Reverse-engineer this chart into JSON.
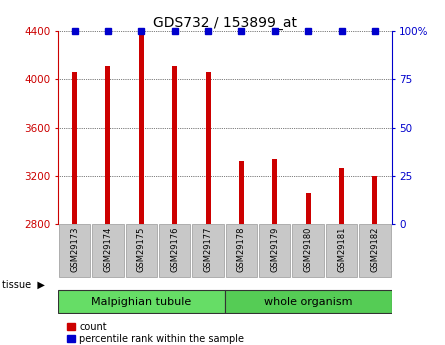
{
  "title": "GDS732 / 153899_at",
  "samples": [
    "GSM29173",
    "GSM29174",
    "GSM29175",
    "GSM29176",
    "GSM29177",
    "GSM29178",
    "GSM29179",
    "GSM29180",
    "GSM29181",
    "GSM29182"
  ],
  "counts": [
    4060,
    4110,
    4390,
    4110,
    4060,
    3320,
    3340,
    3060,
    3270,
    3200
  ],
  "percentiles": [
    100,
    100,
    100,
    100,
    100,
    100,
    100,
    100,
    100,
    100
  ],
  "tissue_groups": [
    {
      "label": "Malpighian tubule",
      "start": 0,
      "end": 5,
      "color": "#66DD66"
    },
    {
      "label": "whole organism",
      "start": 5,
      "end": 10,
      "color": "#55CC55"
    }
  ],
  "ylim_left": [
    2800,
    4400
  ],
  "ylim_right": [
    0,
    100
  ],
  "yticks_left": [
    2800,
    3200,
    3600,
    4000,
    4400
  ],
  "yticks_right": [
    0,
    25,
    50,
    75,
    100
  ],
  "yticklabels_right": [
    "0",
    "25",
    "50",
    "75",
    "100%"
  ],
  "bar_color": "#CC0000",
  "percentile_color": "#0000CC",
  "background_color": "#FFFFFF",
  "tick_label_bg": "#C8C8C8",
  "legend_count_label": "count",
  "legend_percentile_label": "percentile rank within the sample",
  "bar_width": 0.15
}
